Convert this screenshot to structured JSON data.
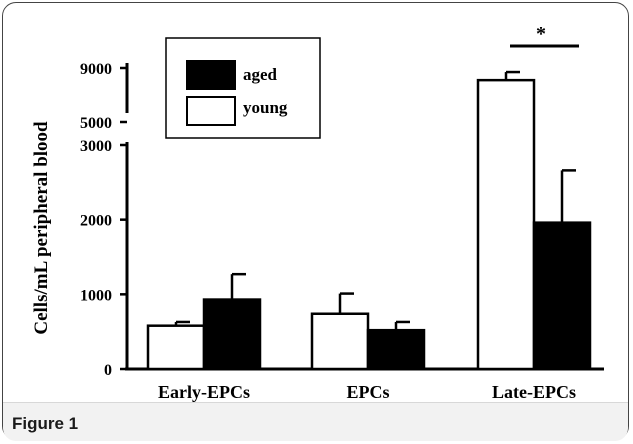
{
  "figure_label": "Figure 1",
  "chart_data": {
    "type": "bar",
    "title": "",
    "xlabel": "",
    "ylabel": "Cells/mL peripheral blood",
    "categories": [
      "Early-EPCs",
      "EPCs",
      "Late-EPCs"
    ],
    "series": [
      {
        "name": "young",
        "color": "#ffffff",
        "values": [
          580,
          740,
          8100
        ],
        "errors": [
          50,
          270,
          600
        ]
      },
      {
        "name": "aged",
        "color": "#000000",
        "values": [
          930,
          520,
          1960
        ],
        "errors": [
          340,
          110,
          700
        ]
      }
    ],
    "y_axis": {
      "broken": true,
      "lower_ticks": [
        0,
        1000,
        2000,
        3000
      ],
      "upper_ticks": [
        5000,
        9000
      ],
      "lower_range": [
        0,
        3000
      ],
      "upper_range": [
        5000,
        9000
      ]
    },
    "legend": {
      "entries": [
        "aged",
        "young"
      ],
      "placement": "top-left"
    },
    "annotation": {
      "text": "*",
      "between": "Late-EPCs young vs aged"
    }
  }
}
